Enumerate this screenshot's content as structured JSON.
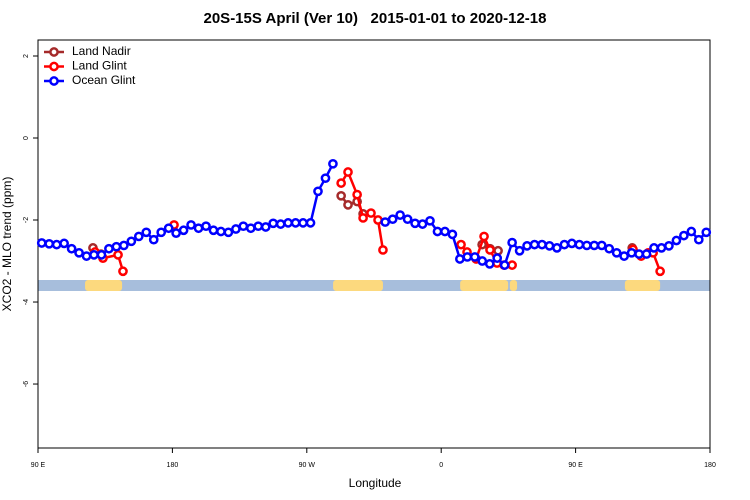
{
  "chart_data": {
    "type": "line",
    "title": "20S-15S April (Ver 10)   2015-01-01 to 2020-12-18",
    "x_label": "Longitude",
    "y_label": "XCO2 - MLO trend (ppm)",
    "xlim": [
      90,
      540
    ],
    "ylim": [
      -7.56,
      2.39
    ],
    "xticks": [
      {
        "value": 90,
        "label": "90 E"
      },
      180,
      {
        "value": 270,
        "label": "90 W"
      },
      {
        "value": 360,
        "label": "0"
      },
      {
        "value": 450,
        "label": "90 E"
      },
      {
        "value": 540,
        "label": "180"
      }
    ],
    "yticks": [
      2,
      0,
      -2,
      -4,
      -6
    ],
    "legend": "top-left",
    "land_ranges": [
      [
        121.5,
        146.3
      ],
      [
        287.6,
        321
      ],
      [
        372.7,
        404.8
      ],
      [
        406,
        410.8
      ],
      [
        483,
        506.6
      ]
    ],
    "series": [
      {
        "name": "Land Nadir",
        "color": "#a52a2a",
        "x": [
          126.8,
          132.2,
          null,
          293,
          297.6,
          303.7,
          307.7,
          null,
          387.4,
          392.7,
          398.1,
          null,
          487.9
        ],
        "values": [
          -2.68,
          -2.83,
          null,
          -1.41,
          -1.63,
          -1.55,
          -1.85,
          null,
          -2.6,
          -2.7,
          -2.75,
          null,
          -2.68
        ]
      },
      {
        "name": "Land Glint",
        "color": "#ff0000",
        "x": [
          128.2,
          133.5,
          143.6,
          146.9,
          null,
          181.1,
          null,
          293,
          297.6,
          303.7,
          307.7,
          313,
          317.7,
          321,
          null,
          373.3,
          377.3,
          383.4,
          388.7,
          392.7,
          397.4,
          402.1,
          407.5,
          null,
          488.5,
          493.9,
          498.6,
          501.9,
          506.6
        ],
        "values": [
          -2.78,
          -2.93,
          -2.85,
          -3.25,
          null,
          -2.12,
          null,
          -1.1,
          -0.83,
          -1.38,
          -1.95,
          -1.83,
          -2.0,
          -2.73,
          null,
          -2.6,
          -2.78,
          -2.95,
          -2.4,
          -2.73,
          -3.05,
          -3.1,
          -3.1,
          null,
          -2.72,
          -2.88,
          -2.8,
          -2.8,
          -3.25
        ]
      },
      {
        "name": "Ocean Glint",
        "color": "#0000ff",
        "x": [
          92.5,
          97.5,
          102.5,
          107.5,
          112.5,
          117.5,
          122.5,
          127.5,
          132.5,
          137.5,
          142.5,
          147.5,
          152.5,
          157.5,
          162.5,
          167.5,
          172.5,
          177.5,
          182.5,
          187.5,
          192.5,
          197.5,
          202.5,
          207.5,
          212.5,
          217.5,
          222.5,
          227.5,
          232.5,
          237.5,
          242.5,
          247.5,
          252.5,
          257.5,
          262.5,
          267.5,
          272.5,
          277.5,
          282.5,
          287.5,
          292.5,
          297.5,
          302.5,
          307.5,
          312.5,
          317.5,
          322.5,
          327.5,
          332.5,
          337.5,
          342.5,
          347.5,
          352.5,
          357.5,
          362.5,
          367.5,
          372.5,
          377.5,
          382.5,
          387.5,
          392.5,
          397.5,
          402.5,
          407.5,
          412.5,
          417.5,
          422.5,
          427.5,
          432.5,
          437.5,
          442.5,
          447.5,
          452.5,
          457.5,
          462.5,
          467.5,
          472.5,
          477.5,
          482.5,
          487.5,
          492.5,
          497.5,
          502.5,
          507.5,
          512.5,
          517.5,
          522.5,
          527.5,
          532.5,
          537.5
        ],
        "values": [
          -2.56,
          -2.58,
          -2.6,
          -2.57,
          -2.7,
          -2.8,
          -2.88,
          -2.85,
          -2.85,
          -2.7,
          -2.65,
          -2.62,
          -2.52,
          -2.4,
          -2.3,
          -2.48,
          -2.3,
          -2.2,
          -2.32,
          -2.25,
          -2.12,
          -2.2,
          -2.15,
          -2.25,
          -2.28,
          -2.3,
          -2.22,
          -2.15,
          -2.2,
          -2.15,
          -2.17,
          -2.08,
          -2.1,
          -2.07,
          -2.07,
          -2.07,
          -2.07,
          -1.3,
          -0.98,
          -0.63,
          null,
          null,
          null,
          null,
          null,
          null,
          -2.05,
          -1.98,
          -1.88,
          -1.98,
          -2.08,
          -2.1,
          -2.02,
          -2.28,
          -2.28,
          -2.35,
          -2.95,
          -2.9,
          -2.9,
          -3.0,
          -3.07,
          -2.93,
          -3.1,
          -2.55,
          -2.75,
          -2.63,
          -2.6,
          -2.6,
          -2.63,
          -2.68,
          -2.6,
          -2.57,
          -2.6,
          -2.62,
          -2.62,
          -2.62,
          -2.7,
          -2.8,
          -2.88,
          -2.8,
          -2.83,
          -2.83,
          -2.68,
          -2.68,
          -2.63,
          -2.5,
          -2.38,
          -2.28,
          -2.48,
          -2.3
        ]
      }
    ]
  }
}
